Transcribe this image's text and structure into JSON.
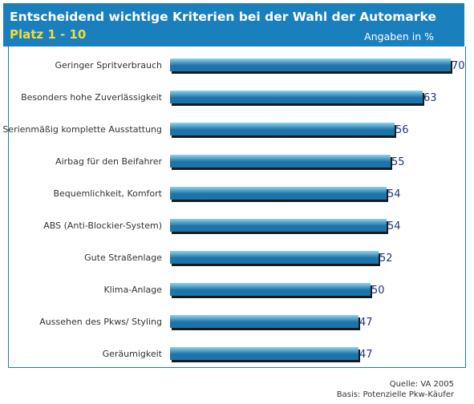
{
  "header": {
    "title": "Entscheidend wichtige Kriterien bei der Wahl der Automarke",
    "subtitle": "Platz 1 - 10",
    "unit": "Angaben in %"
  },
  "footer": {
    "source": "Quelle: VA 2005",
    "basis": "Basis: Potenzielle Pkw-Käufer"
  },
  "colors": {
    "banner": "#1a7fbd",
    "subtitle": "#f3dc3a",
    "bar_light": "#8fd3ef",
    "bar_dark": "#1e74a8",
    "shadow": "#1a1a1a",
    "value_text": "#24347a"
  },
  "chart_data": {
    "type": "bar",
    "orientation": "horizontal",
    "categories": [
      "Geringer Spritverbrauch",
      "Besonders hohe Zuverlässigkeit",
      "Serienmäßig komplette Ausstattung",
      "Airbag für den Beifahrer",
      "Bequemlichkeit, Komfort",
      "ABS (Anti-Blockier-System)",
      "Gute Straßenlage",
      "Klima-Anlage",
      "Aussehen des Pkws/ Styling",
      "Geräumigkeit"
    ],
    "values": [
      70,
      63,
      56,
      55,
      54,
      54,
      52,
      50,
      47,
      47
    ],
    "xlim": [
      0,
      70
    ],
    "grid": false,
    "legend": "none"
  }
}
